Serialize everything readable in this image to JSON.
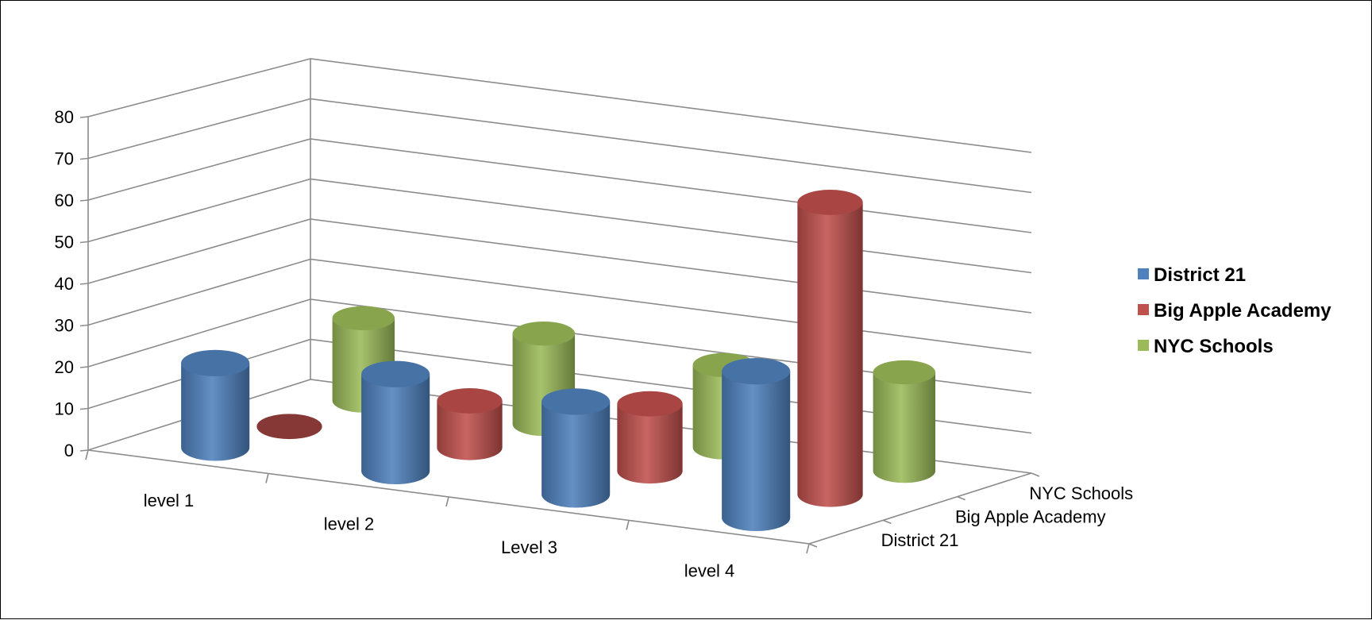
{
  "chart_data": {
    "type": "bar",
    "style": "3d-cylinder",
    "categories": [
      "level 1",
      "level 2",
      "Level 3",
      "level 4"
    ],
    "series": [
      {
        "name": "District 21",
        "color": "#4f81bd",
        "values": [
          21,
          24,
          23,
          36
        ]
      },
      {
        "name": "Big Apple Academy",
        "color": "#c0504d",
        "values": [
          0,
          12,
          17,
          72
        ]
      },
      {
        "name": "NYC Schools",
        "color": "#9bbb59",
        "values": [
          21,
          23,
          21,
          25
        ]
      }
    ],
    "ylim": [
      0,
      80
    ],
    "yticks": [
      0,
      10,
      20,
      30,
      40,
      50,
      60,
      70,
      80
    ],
    "grid": true,
    "legend": "right"
  }
}
